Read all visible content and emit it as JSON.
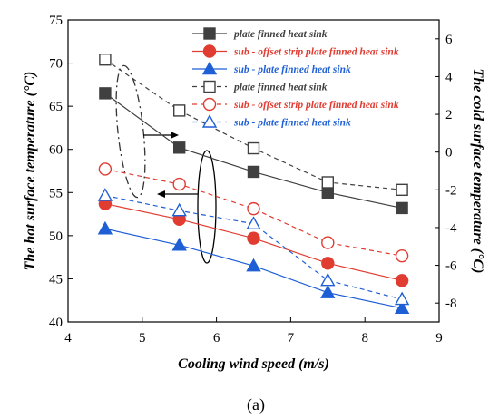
{
  "chart_data": {
    "type": "line",
    "caption": "(a)",
    "xlabel": "Cooling wind speed (m/s)",
    "ylabel_left": "The hot surface temperature (°C)",
    "ylabel_right": "The cold surface temperature (°C)",
    "xlim": [
      4,
      9
    ],
    "xticks": [
      4,
      5,
      6,
      7,
      8,
      9
    ],
    "ylim_left": [
      40,
      75
    ],
    "yticks_left": [
      40,
      45,
      50,
      55,
      60,
      65,
      70,
      75
    ],
    "ylim_right": [
      -9,
      7
    ],
    "yticks_right": [
      -8,
      -6,
      -4,
      -2,
      0,
      2,
      4,
      6
    ],
    "grid": false,
    "legend_position": "top-right",
    "x": [
      4.5,
      5.5,
      6.5,
      7.5,
      8.5
    ],
    "series": [
      {
        "name": "plate finned heat sink",
        "axis": "left",
        "color": "#404040",
        "marker": "square",
        "filled": true,
        "dashed": false,
        "values": [
          66.5,
          60.2,
          57.4,
          55.0,
          53.2
        ]
      },
      {
        "name": "sub - offset strip plate finned heat sink",
        "axis": "left",
        "color": "#e03c31",
        "marker": "circle",
        "filled": true,
        "dashed": false,
        "values": [
          53.7,
          51.9,
          49.7,
          46.8,
          44.8
        ]
      },
      {
        "name": "sub - plate finned heat sink",
        "axis": "left",
        "color": "#1f5fd6",
        "marker": "triangle",
        "filled": true,
        "dashed": false,
        "values": [
          50.8,
          48.9,
          46.5,
          43.4,
          41.6
        ]
      },
      {
        "name": "plate finned heat sink",
        "axis": "right",
        "color": "#404040",
        "marker": "square",
        "filled": false,
        "dashed": true,
        "values": [
          4.9,
          2.2,
          0.2,
          -1.6,
          -2.0
        ]
      },
      {
        "name": "sub - offset strip plate finned heat sink",
        "axis": "right",
        "color": "#e03c31",
        "marker": "circle",
        "filled": false,
        "dashed": true,
        "values": [
          -0.9,
          -1.7,
          -3.0,
          -4.8,
          -5.5
        ]
      },
      {
        "name": "sub - plate finned heat sink",
        "axis": "right",
        "color": "#1f5fd6",
        "marker": "triangle",
        "filled": false,
        "dashed": true,
        "values": [
          -2.3,
          -3.1,
          -3.8,
          -6.8,
          -7.8
        ]
      }
    ]
  }
}
